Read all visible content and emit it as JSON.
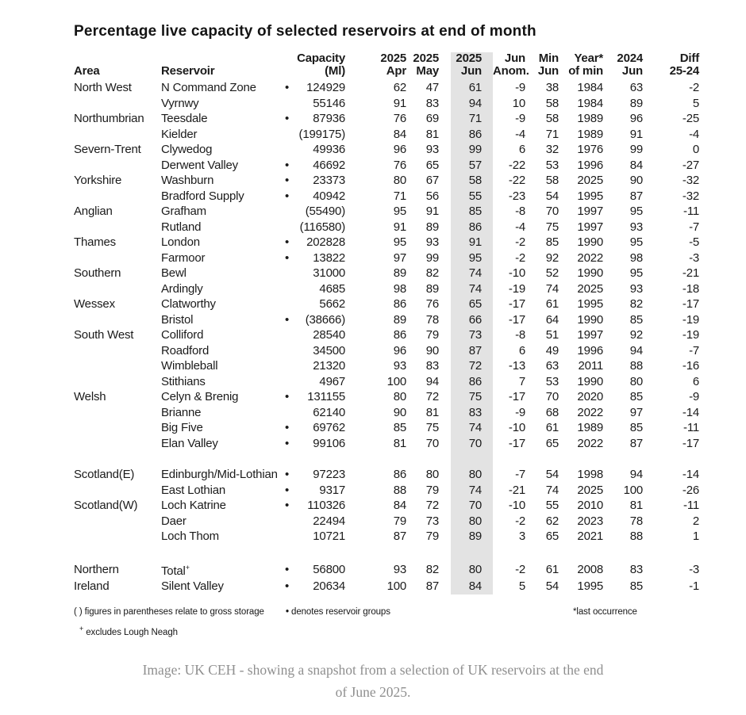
{
  "title": "Percentage live capacity of selected reservoirs at end of month",
  "colors": {
    "highlight": "#e3e3e3",
    "text": "#1b1b1b",
    "caption": "#8f8f8f"
  },
  "chart_data": {
    "type": "table",
    "title": "Percentage live capacity of selected reservoirs at end of month",
    "highlighted_column": "jun",
    "group_marker": "•",
    "columns": [
      {
        "key": "area",
        "line1": "",
        "line2": "Area"
      },
      {
        "key": "reservoir",
        "line1": "",
        "line2": "Reservoir"
      },
      {
        "key": "group",
        "line1": "",
        "line2": ""
      },
      {
        "key": "capacity",
        "line1": "Capacity",
        "line2": "(Ml)"
      },
      {
        "key": "apr",
        "line1": "2025",
        "line2": "Apr"
      },
      {
        "key": "may",
        "line1": "2025",
        "line2": "May"
      },
      {
        "key": "jun",
        "line1": "2025",
        "line2": "Jun"
      },
      {
        "key": "anom",
        "line1": "Jun",
        "line2": "Anom."
      },
      {
        "key": "min_jun",
        "line1": "Min",
        "line2": "Jun"
      },
      {
        "key": "year_of_min",
        "line1": "Year*",
        "line2": "of min"
      },
      {
        "key": "jun_2024",
        "line1": "2024",
        "line2": "Jun"
      },
      {
        "key": "diff",
        "line1": "Diff",
        "line2": "25-24"
      }
    ],
    "rows": [
      {
        "area": "North West",
        "reservoir": "N Command Zone",
        "group": true,
        "capacity": "124929",
        "apr": "62",
        "may": "47",
        "jun": "61",
        "anom": "-9",
        "min_jun": "38",
        "year_of_min": "1984",
        "jun_2024": "63",
        "diff": "-2"
      },
      {
        "area": "",
        "reservoir": "Vyrnwy",
        "group": false,
        "capacity": "55146",
        "apr": "91",
        "may": "83",
        "jun": "94",
        "anom": "10",
        "min_jun": "58",
        "year_of_min": "1984",
        "jun_2024": "89",
        "diff": "5"
      },
      {
        "area": "Northumbrian",
        "reservoir": "Teesdale",
        "group": true,
        "capacity": "87936",
        "apr": "76",
        "may": "69",
        "jun": "71",
        "anom": "-9",
        "min_jun": "58",
        "year_of_min": "1989",
        "jun_2024": "96",
        "diff": "-25"
      },
      {
        "area": "",
        "reservoir": "Kielder",
        "group": false,
        "capacity": "(199175)",
        "apr": "84",
        "may": "81",
        "jun": "86",
        "anom": "-4",
        "min_jun": "71",
        "year_of_min": "1989",
        "jun_2024": "91",
        "diff": "-4"
      },
      {
        "area": "Severn-Trent",
        "reservoir": "Clywedog",
        "group": false,
        "capacity": "49936",
        "apr": "96",
        "may": "93",
        "jun": "99",
        "anom": "6",
        "min_jun": "32",
        "year_of_min": "1976",
        "jun_2024": "99",
        "diff": "0"
      },
      {
        "area": "",
        "reservoir": "Derwent Valley",
        "group": true,
        "capacity": "46692",
        "apr": "76",
        "may": "65",
        "jun": "57",
        "anom": "-22",
        "min_jun": "53",
        "year_of_min": "1996",
        "jun_2024": "84",
        "diff": "-27"
      },
      {
        "area": "Yorkshire",
        "reservoir": "Washburn",
        "group": true,
        "capacity": "23373",
        "apr": "80",
        "may": "67",
        "jun": "58",
        "anom": "-22",
        "min_jun": "58",
        "year_of_min": "2025",
        "jun_2024": "90",
        "diff": "-32"
      },
      {
        "area": "",
        "reservoir": "Bradford Supply",
        "group": true,
        "capacity": "40942",
        "apr": "71",
        "may": "56",
        "jun": "55",
        "anom": "-23",
        "min_jun": "54",
        "year_of_min": "1995",
        "jun_2024": "87",
        "diff": "-32"
      },
      {
        "area": "Anglian",
        "reservoir": "Grafham",
        "group": false,
        "capacity": "(55490)",
        "apr": "95",
        "may": "91",
        "jun": "85",
        "anom": "-8",
        "min_jun": "70",
        "year_of_min": "1997",
        "jun_2024": "95",
        "diff": "-11"
      },
      {
        "area": "",
        "reservoir": "Rutland",
        "group": false,
        "capacity": "(116580)",
        "apr": "91",
        "may": "89",
        "jun": "86",
        "anom": "-4",
        "min_jun": "75",
        "year_of_min": "1997",
        "jun_2024": "93",
        "diff": "-7"
      },
      {
        "area": "Thames",
        "reservoir": "London",
        "group": true,
        "capacity": "202828",
        "apr": "95",
        "may": "93",
        "jun": "91",
        "anom": "-2",
        "min_jun": "85",
        "year_of_min": "1990",
        "jun_2024": "95",
        "diff": "-5"
      },
      {
        "area": "",
        "reservoir": "Farmoor",
        "group": true,
        "capacity": "13822",
        "apr": "97",
        "may": "99",
        "jun": "95",
        "anom": "-2",
        "min_jun": "92",
        "year_of_min": "2022",
        "jun_2024": "98",
        "diff": "-3"
      },
      {
        "area": "Southern",
        "reservoir": "Bewl",
        "group": false,
        "capacity": "31000",
        "apr": "89",
        "may": "82",
        "jun": "74",
        "anom": "-10",
        "min_jun": "52",
        "year_of_min": "1990",
        "jun_2024": "95",
        "diff": "-21"
      },
      {
        "area": "",
        "reservoir": "Ardingly",
        "group": false,
        "capacity": "4685",
        "apr": "98",
        "may": "89",
        "jun": "74",
        "anom": "-19",
        "min_jun": "74",
        "year_of_min": "2025",
        "jun_2024": "93",
        "diff": "-18"
      },
      {
        "area": "Wessex",
        "reservoir": "Clatworthy",
        "group": false,
        "capacity": "5662",
        "apr": "86",
        "may": "76",
        "jun": "65",
        "anom": "-17",
        "min_jun": "61",
        "year_of_min": "1995",
        "jun_2024": "82",
        "diff": "-17"
      },
      {
        "area": "",
        "reservoir": "Bristol",
        "group": true,
        "capacity": "(38666)",
        "apr": "89",
        "may": "78",
        "jun": "66",
        "anom": "-17",
        "min_jun": "64",
        "year_of_min": "1990",
        "jun_2024": "85",
        "diff": "-19"
      },
      {
        "area": "South West",
        "reservoir": "Colliford",
        "group": false,
        "capacity": "28540",
        "apr": "86",
        "may": "79",
        "jun": "73",
        "anom": "-8",
        "min_jun": "51",
        "year_of_min": "1997",
        "jun_2024": "92",
        "diff": "-19"
      },
      {
        "area": "",
        "reservoir": "Roadford",
        "group": false,
        "capacity": "34500",
        "apr": "96",
        "may": "90",
        "jun": "87",
        "anom": "6",
        "min_jun": "49",
        "year_of_min": "1996",
        "jun_2024": "94",
        "diff": "-7"
      },
      {
        "area": "",
        "reservoir": "Wimbleball",
        "group": false,
        "capacity": "21320",
        "apr": "93",
        "may": "83",
        "jun": "72",
        "anom": "-13",
        "min_jun": "63",
        "year_of_min": "2011",
        "jun_2024": "88",
        "diff": "-16"
      },
      {
        "area": "",
        "reservoir": "Stithians",
        "group": false,
        "capacity": "4967",
        "apr": "100",
        "may": "94",
        "jun": "86",
        "anom": "7",
        "min_jun": "53",
        "year_of_min": "1990",
        "jun_2024": "80",
        "diff": "6"
      },
      {
        "area": "Welsh",
        "reservoir": "Celyn & Brenig",
        "group": true,
        "capacity": "131155",
        "apr": "80",
        "may": "72",
        "jun": "75",
        "anom": "-17",
        "min_jun": "70",
        "year_of_min": "2020",
        "jun_2024": "85",
        "diff": "-9"
      },
      {
        "area": "",
        "reservoir": "Brianne",
        "group": false,
        "capacity": "62140",
        "apr": "90",
        "may": "81",
        "jun": "83",
        "anom": "-9",
        "min_jun": "68",
        "year_of_min": "2022",
        "jun_2024": "97",
        "diff": "-14"
      },
      {
        "area": "",
        "reservoir": "Big Five",
        "group": true,
        "capacity": "69762",
        "apr": "85",
        "may": "75",
        "jun": "74",
        "anom": "-10",
        "min_jun": "61",
        "year_of_min": "1989",
        "jun_2024": "85",
        "diff": "-11"
      },
      {
        "area": "",
        "reservoir": "Elan Valley",
        "group": true,
        "capacity": "99106",
        "apr": "81",
        "may": "70",
        "jun": "70",
        "anom": "-17",
        "min_jun": "65",
        "year_of_min": "2022",
        "jun_2024": "87",
        "diff": "-17"
      },
      {
        "spacer": true
      },
      {
        "area": "Scotland(E)",
        "reservoir": "Edinburgh/Mid-Lothian",
        "group": true,
        "capacity": "97223",
        "apr": "86",
        "may": "80",
        "jun": "80",
        "anom": "-7",
        "min_jun": "54",
        "year_of_min": "1998",
        "jun_2024": "94",
        "diff": "-14"
      },
      {
        "area": "",
        "reservoir": "East Lothian",
        "group": true,
        "capacity": "9317",
        "apr": "88",
        "may": "79",
        "jun": "74",
        "anom": "-21",
        "min_jun": "74",
        "year_of_min": "2025",
        "jun_2024": "100",
        "diff": "-26"
      },
      {
        "area": "Scotland(W)",
        "reservoir": "Loch Katrine",
        "group": true,
        "capacity": "110326",
        "apr": "84",
        "may": "72",
        "jun": "70",
        "anom": "-10",
        "min_jun": "55",
        "year_of_min": "2010",
        "jun_2024": "81",
        "diff": "-11"
      },
      {
        "area": "",
        "reservoir": "Daer",
        "group": false,
        "capacity": "22494",
        "apr": "79",
        "may": "73",
        "jun": "80",
        "anom": "-2",
        "min_jun": "62",
        "year_of_min": "2023",
        "jun_2024": "78",
        "diff": "2"
      },
      {
        "area": "",
        "reservoir": "Loch Thom",
        "group": false,
        "capacity": "10721",
        "apr": "87",
        "may": "79",
        "jun": "89",
        "anom": "3",
        "min_jun": "65",
        "year_of_min": "2021",
        "jun_2024": "88",
        "diff": "1"
      },
      {
        "spacer": true
      },
      {
        "area": "Northern",
        "reservoir": "Total",
        "reservoir_sup": "+",
        "group": true,
        "capacity": "56800",
        "apr": "93",
        "may": "82",
        "jun": "80",
        "anom": "-2",
        "min_jun": "61",
        "year_of_min": "2008",
        "jun_2024": "83",
        "diff": "-3"
      },
      {
        "area": "Ireland",
        "reservoir": "Silent Valley",
        "group": true,
        "capacity": "20634",
        "apr": "100",
        "may": "87",
        "jun": "84",
        "anom": "5",
        "min_jun": "54",
        "year_of_min": "1995",
        "jun_2024": "85",
        "diff": "-1"
      }
    ]
  },
  "footnotes": {
    "parentheses": "( ) figures in parentheses relate to gross storage",
    "group_marker": "•",
    "group_text": "denotes reservoir groups",
    "asterisk": "*last occurrence",
    "plus_marker": "+",
    "plus_text": "excludes Lough Neagh"
  },
  "caption": {
    "line1": "Image: UK CEH - showing a snapshot from a selection of UK reservoirs at the end",
    "line2": "of June 2025."
  }
}
